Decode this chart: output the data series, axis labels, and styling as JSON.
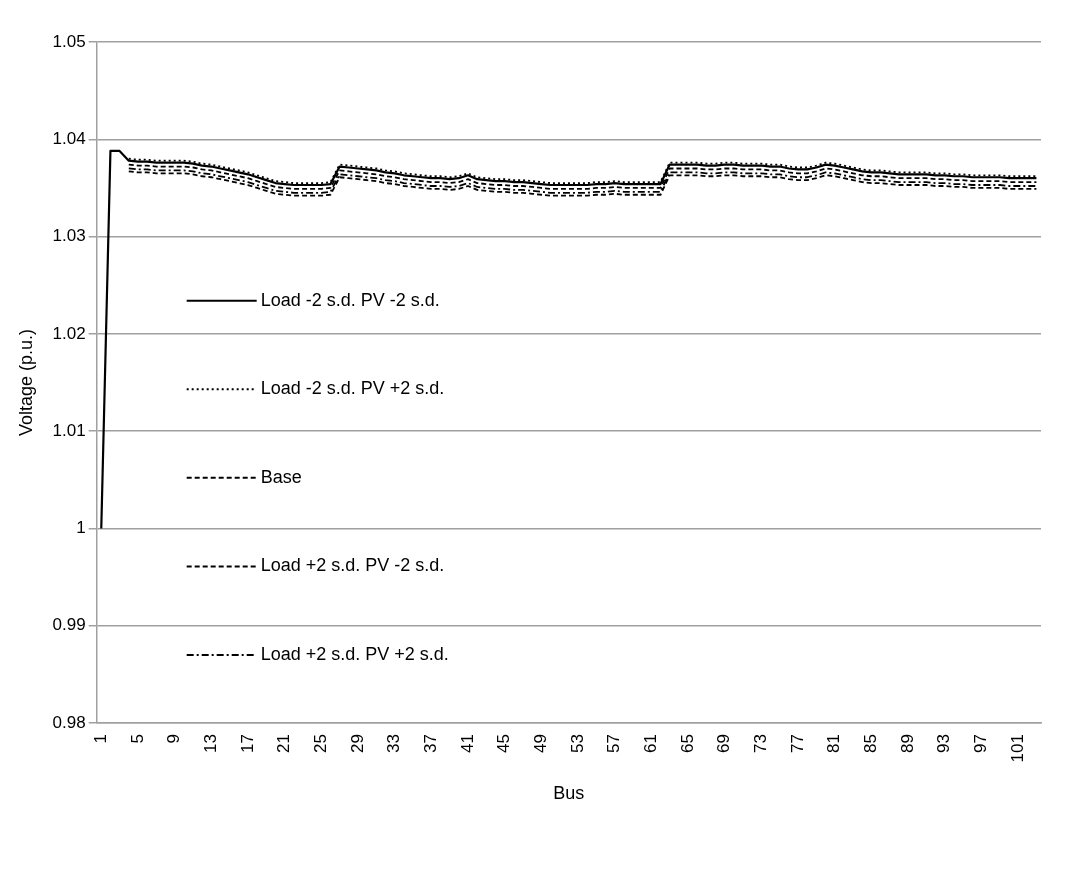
{
  "chart_data": {
    "type": "line",
    "xlabel": "Bus",
    "ylabel": "Voltage (p.u.)",
    "categories": [
      "1",
      null,
      null,
      null,
      "5",
      null,
      null,
      null,
      "9",
      null,
      null,
      null,
      "13",
      null,
      null,
      null,
      "17",
      null,
      null,
      null,
      "21",
      null,
      null,
      null,
      "25",
      null,
      null,
      null,
      "29",
      null,
      null,
      null,
      "33",
      null,
      null,
      null,
      "37",
      null,
      null,
      null,
      "41",
      null,
      null,
      null,
      "45",
      null,
      null,
      null,
      "49",
      null,
      null,
      null,
      "53",
      null,
      null,
      null,
      "57",
      null,
      null,
      null,
      "61",
      null,
      null,
      null,
      "65",
      null,
      null,
      null,
      "69",
      null,
      null,
      null,
      "73",
      null,
      null,
      null,
      "77",
      null,
      null,
      null,
      "81",
      null,
      null,
      null,
      "85",
      null,
      null,
      null,
      "89",
      null,
      null,
      null,
      "93",
      null,
      null,
      null,
      "97",
      null,
      null,
      null,
      "101",
      null,
      null
    ],
    "ylim": [
      0.98,
      1.05
    ],
    "yticks": [
      0.98,
      0.99,
      1,
      1.01,
      1.02,
      1.03,
      1.04,
      1.05
    ],
    "grid": "y",
    "legend": "left",
    "marker": "none",
    "series": [
      {
        "name": "Load -2 s.d. PV -2 s.d.",
        "color": "#000000",
        "line_style": "solid",
        "values": [
          1.0,
          1.0388,
          1.0388,
          1.0378,
          1.0377,
          1.0377,
          1.0376,
          1.0376,
          1.0376,
          1.0376,
          1.0375,
          1.0373,
          1.0372,
          1.037,
          1.0368,
          1.0366,
          1.0364,
          1.0361,
          1.0358,
          1.0355,
          1.0354,
          1.0353,
          1.0353,
          1.0353,
          1.0353,
          1.0354,
          1.0372,
          1.0371,
          1.037,
          1.0369,
          1.0368,
          1.0366,
          1.0365,
          1.0363,
          1.0362,
          1.0361,
          1.036,
          1.036,
          1.0359,
          1.036,
          1.0363,
          1.0359,
          1.0358,
          1.0357,
          1.0357,
          1.0356,
          1.0356,
          1.0355,
          1.0354,
          1.0353,
          1.0353,
          1.0353,
          1.0353,
          1.0353,
          1.0354,
          1.0354,
          1.0355,
          1.0354,
          1.0354,
          1.0354,
          1.0354,
          1.0354,
          1.0374,
          1.0374,
          1.0374,
          1.0374,
          1.0373,
          1.0373,
          1.0374,
          1.0374,
          1.0373,
          1.0373,
          1.0373,
          1.0372,
          1.0372,
          1.037,
          1.0369,
          1.0369,
          1.0371,
          1.0374,
          1.0373,
          1.0371,
          1.0369,
          1.0367,
          1.0366,
          1.0366,
          1.0365,
          1.0364,
          1.0364,
          1.0364,
          1.0364,
          1.0363,
          1.0363,
          1.0362,
          1.0362,
          1.0361,
          1.0361,
          1.0361,
          1.0361,
          1.036,
          1.036,
          1.036,
          1.036
        ]
      },
      {
        "name": "Load -2 s.d. PV +2 s.d.",
        "color": "#000000",
        "line_style": "dotted",
        "values": [
          null,
          null,
          null,
          1.038,
          1.0379,
          1.0379,
          1.0378,
          1.0378,
          1.0378,
          1.0378,
          1.0377,
          1.0375,
          1.0374,
          1.0372,
          1.037,
          1.0368,
          1.0366,
          1.0363,
          1.036,
          1.0357,
          1.0356,
          1.0355,
          1.0355,
          1.0355,
          1.0355,
          1.0356,
          1.0374,
          1.0373,
          1.0372,
          1.0371,
          1.037,
          1.0368,
          1.0367,
          1.0365,
          1.0364,
          1.0363,
          1.0362,
          1.0362,
          1.0361,
          1.0362,
          1.0365,
          1.0361,
          1.036,
          1.0359,
          1.0359,
          1.0358,
          1.0358,
          1.0357,
          1.0356,
          1.0355,
          1.0355,
          1.0355,
          1.0355,
          1.0355,
          1.0356,
          1.0356,
          1.0357,
          1.0356,
          1.0356,
          1.0356,
          1.0356,
          1.0356,
          1.0376,
          1.0376,
          1.0376,
          1.0376,
          1.0375,
          1.0375,
          1.0376,
          1.0376,
          1.0375,
          1.0375,
          1.0375,
          1.0374,
          1.0374,
          1.0372,
          1.0371,
          1.0371,
          1.0373,
          1.0376,
          1.0375,
          1.0373,
          1.0371,
          1.0369,
          1.0368,
          1.0368,
          1.0367,
          1.0366,
          1.0366,
          1.0366,
          1.0366,
          1.0365,
          1.0365,
          1.0364,
          1.0364,
          1.0363,
          1.0363,
          1.0363,
          1.0363,
          1.0362,
          1.0362,
          1.0362,
          1.0362
        ]
      },
      {
        "name": "Base",
        "color": "#000000",
        "line_style": "dashed",
        "values": [
          null,
          null,
          null,
          1.0374,
          1.0373,
          1.0373,
          1.0372,
          1.0372,
          1.0372,
          1.0372,
          1.0371,
          1.0369,
          1.0368,
          1.0366,
          1.0364,
          1.0362,
          1.036,
          1.0357,
          1.0354,
          1.0351,
          1.035,
          1.0349,
          1.0349,
          1.0349,
          1.0349,
          1.035,
          1.0368,
          1.0367,
          1.0366,
          1.0365,
          1.0364,
          1.0362,
          1.0361,
          1.0359,
          1.0358,
          1.0357,
          1.0356,
          1.0356,
          1.0355,
          1.0356,
          1.0359,
          1.0355,
          1.0354,
          1.0353,
          1.0353,
          1.0352,
          1.0352,
          1.0351,
          1.035,
          1.0349,
          1.0349,
          1.0349,
          1.0349,
          1.0349,
          1.035,
          1.035,
          1.0351,
          1.035,
          1.035,
          1.035,
          1.035,
          1.035,
          1.037,
          1.037,
          1.037,
          1.037,
          1.0369,
          1.0369,
          1.037,
          1.037,
          1.0369,
          1.0369,
          1.0369,
          1.0368,
          1.0368,
          1.0366,
          1.0365,
          1.0365,
          1.0367,
          1.037,
          1.0369,
          1.0367,
          1.0365,
          1.0363,
          1.0362,
          1.0362,
          1.0361,
          1.036,
          1.036,
          1.036,
          1.036,
          1.0359,
          1.0359,
          1.0358,
          1.0358,
          1.0357,
          1.0357,
          1.0357,
          1.0357,
          1.0356,
          1.0356,
          1.0356,
          1.0356
        ]
      },
      {
        "name": "Load +2 s.d. PV -2 s.d.",
        "color": "#000000",
        "line_style": "dashed",
        "values": [
          null,
          null,
          null,
          1.0367,
          1.0366,
          1.0366,
          1.0365,
          1.0365,
          1.0365,
          1.0365,
          1.0364,
          1.0362,
          1.0361,
          1.0359,
          1.0357,
          1.0355,
          1.0353,
          1.035,
          1.0347,
          1.0344,
          1.0343,
          1.0342,
          1.0342,
          1.0342,
          1.0342,
          1.0343,
          1.0361,
          1.036,
          1.0359,
          1.0358,
          1.0357,
          1.0355,
          1.0354,
          1.0352,
          1.0351,
          1.035,
          1.0349,
          1.0349,
          1.0348,
          1.0349,
          1.0352,
          1.0348,
          1.0347,
          1.0346,
          1.0346,
          1.0345,
          1.0345,
          1.0344,
          1.0343,
          1.0342,
          1.0342,
          1.0342,
          1.0342,
          1.0342,
          1.0343,
          1.0343,
          1.0344,
          1.0343,
          1.0343,
          1.0343,
          1.0343,
          1.0343,
          1.0363,
          1.0363,
          1.0363,
          1.0363,
          1.0362,
          1.0362,
          1.0363,
          1.0363,
          1.0362,
          1.0362,
          1.0362,
          1.0361,
          1.0361,
          1.0359,
          1.0358,
          1.0358,
          1.036,
          1.0363,
          1.0362,
          1.036,
          1.0358,
          1.0356,
          1.0355,
          1.0355,
          1.0354,
          1.0353,
          1.0353,
          1.0353,
          1.0353,
          1.0352,
          1.0352,
          1.0351,
          1.0351,
          1.035,
          1.035,
          1.035,
          1.035,
          1.0349,
          1.0349,
          1.0349,
          1.0349
        ]
      },
      {
        "name": "Load +2 s.d. PV +2 s.d.",
        "color": "#000000",
        "line_style": "dashdot",
        "values": [
          null,
          null,
          null,
          1.037,
          1.0369,
          1.0369,
          1.0368,
          1.0368,
          1.0368,
          1.0368,
          1.0367,
          1.0365,
          1.0364,
          1.0362,
          1.036,
          1.0358,
          1.0356,
          1.0353,
          1.035,
          1.0347,
          1.0346,
          1.0345,
          1.0345,
          1.0345,
          1.0345,
          1.0346,
          1.0364,
          1.0363,
          1.0362,
          1.0361,
          1.036,
          1.0358,
          1.0357,
          1.0355,
          1.0354,
          1.0353,
          1.0352,
          1.0352,
          1.0351,
          1.0352,
          1.0355,
          1.0351,
          1.035,
          1.0349,
          1.0349,
          1.0348,
          1.0348,
          1.0347,
          1.0346,
          1.0345,
          1.0345,
          1.0345,
          1.0345,
          1.0345,
          1.0346,
          1.0346,
          1.0347,
          1.0346,
          1.0346,
          1.0346,
          1.0346,
          1.0346,
          1.0366,
          1.0366,
          1.0366,
          1.0366,
          1.0365,
          1.0365,
          1.0366,
          1.0366,
          1.0365,
          1.0365,
          1.0365,
          1.0364,
          1.0364,
          1.0362,
          1.0361,
          1.0361,
          1.0363,
          1.0366,
          1.0365,
          1.0363,
          1.0361,
          1.0359,
          1.0358,
          1.0358,
          1.0357,
          1.0356,
          1.0356,
          1.0356,
          1.0356,
          1.0355,
          1.0355,
          1.0354,
          1.0354,
          1.0353,
          1.0353,
          1.0353,
          1.0353,
          1.0352,
          1.0352,
          1.0352,
          1.0352
        ]
      }
    ]
  }
}
